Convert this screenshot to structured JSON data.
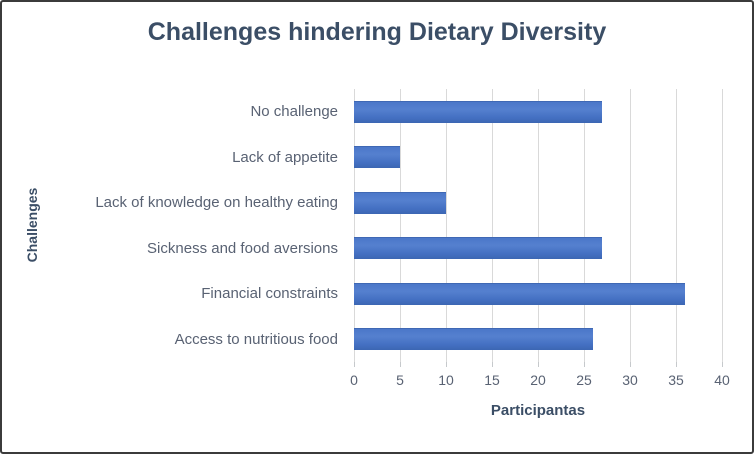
{
  "chart_data": {
    "type": "bar",
    "orientation": "horizontal",
    "title": "Challenges hindering Dietary Diversity",
    "xlabel": "Participantas",
    "ylabel": "Challenges",
    "categories": [
      "No challenge",
      "Lack of appetite",
      "Lack of knowledge on healthy eating",
      "Sickness and food aversions",
      "Financial constraints",
      "Access to nutritious food"
    ],
    "values": [
      27,
      5,
      10,
      27,
      36,
      26
    ],
    "xlim": [
      0,
      40
    ],
    "xticks": [
      0,
      5,
      10,
      15,
      20,
      25,
      30,
      35,
      40
    ],
    "grid": true,
    "legend": false,
    "colors": {
      "bar": "#4472C4",
      "title_text": "#3b4e66",
      "label_text": "#596273",
      "gridline": "#d9d9d9",
      "frame_border": "#3b3b3b",
      "background": "#ffffff"
    }
  }
}
